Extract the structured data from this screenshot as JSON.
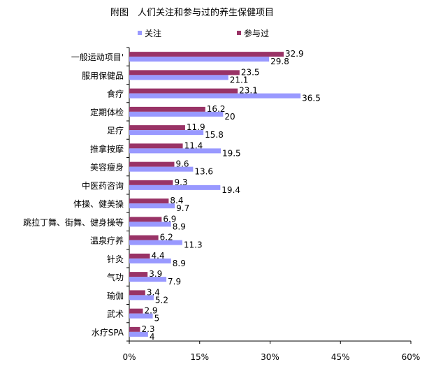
{
  "colors": {
    "focus": "#9999FF",
    "participated": "#993366",
    "axis": "#000000",
    "background": "#FFFFFF"
  },
  "chart_data": {
    "type": "bar",
    "orientation": "horizontal",
    "title": "附图　人们关注和参与过的养生保健项目",
    "xlabel": "",
    "ylabel": "",
    "xlim": [
      0,
      60
    ],
    "x_ticks": [
      "0%",
      "15%",
      "30%",
      "45%",
      "60%"
    ],
    "grid": false,
    "legend_position": "top",
    "categories": [
      "一般运动项目'",
      "服用保健品",
      "食疗",
      "定期体检",
      "足疗",
      "推拿按摩",
      "美容瘦身",
      "中医药咨询",
      "体操、健美操",
      "跳拉丁舞、街舞、健身操等",
      "温泉疗养",
      "针灸",
      "气功",
      "瑜伽",
      "武术",
      "水疗SPA"
    ],
    "series": [
      {
        "name": "关注",
        "color": "#9999FF",
        "values": [
          29.8,
          21.1,
          36.5,
          20,
          15.8,
          19.5,
          13.6,
          19.4,
          9.7,
          8.9,
          11.3,
          8.9,
          7.9,
          5.2,
          5,
          4
        ],
        "labels": [
          "29.8",
          "21.1",
          "36.5",
          "20",
          "15.8",
          "19.5",
          "13.6",
          "19.4",
          "9.7",
          "8.9",
          "11.3",
          "8.9",
          "7.9",
          "5.2",
          "5",
          "4"
        ]
      },
      {
        "name": "参与过",
        "color": "#993366",
        "values": [
          32.9,
          23.5,
          23.1,
          16.2,
          11.9,
          11.4,
          9.6,
          9.3,
          8.4,
          6.9,
          6.2,
          4.4,
          3.9,
          3.4,
          2.9,
          2.3
        ],
        "labels": [
          "32.9",
          "23.5",
          "23.1",
          "16.2",
          "11.9",
          "11.4",
          "9.6",
          "9.3",
          "8.4",
          "6.9",
          "6.2",
          "4.4",
          "3.9",
          "3.4",
          "2.9",
          "2.3"
        ]
      }
    ]
  }
}
